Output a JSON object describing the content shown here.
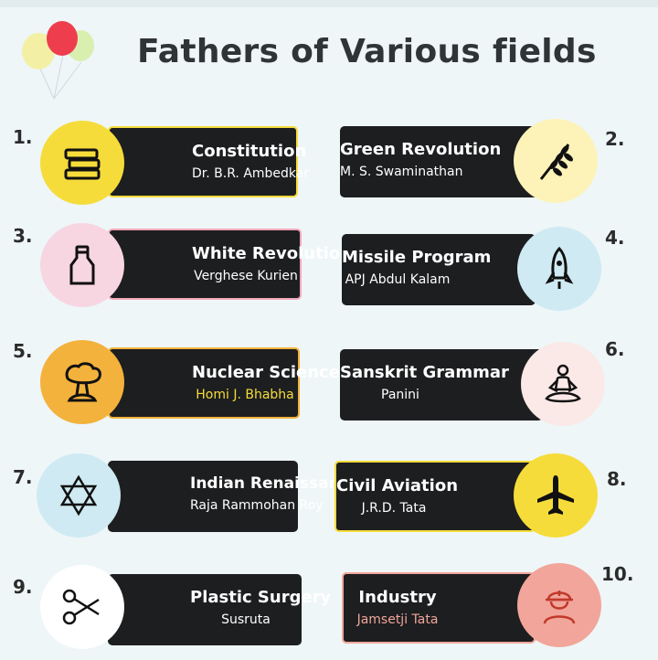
{
  "title": "Fathers of Various fields",
  "colors": {
    "card": "#1d1e20",
    "yellow": "#f6dc3a",
    "pink": "#f7d6e2",
    "light_blue": "#cfeaf2",
    "orange": "#f3b23c",
    "pale_yellow": "#fdf3b8",
    "salmon": "#f2a59a"
  },
  "items": [
    {
      "number": "1.",
      "field": "Constitution",
      "person": "Dr. B.R. Ambedkar",
      "icon": "books-icon"
    },
    {
      "number": "2.",
      "field": "Green Revolution",
      "person": "M. S. Swaminathan",
      "icon": "wheat-icon"
    },
    {
      "number": "3.",
      "field": "White Revolution",
      "person": "Verghese Kurien",
      "icon": "milk-bottle-icon"
    },
    {
      "number": "4.",
      "field": "Missile Program",
      "person": "APJ Abdul Kalam",
      "icon": "rocket-icon"
    },
    {
      "number": "5.",
      "field": "Nuclear Science",
      "person": "Homi J. Bhabha",
      "icon": "mushroom-cloud-icon"
    },
    {
      "number": "6.",
      "field": "Sanskrit Grammar",
      "person": "Panini",
      "icon": "meditation-icon"
    },
    {
      "number": "7.",
      "field": "Indian Renaissance",
      "person": "Raja Rammohan Roy",
      "icon": "star-of-david-icon"
    },
    {
      "number": "8.",
      "field": "Civil Aviation",
      "person": "J.R.D. Tata",
      "icon": "airplane-icon"
    },
    {
      "number": "9.",
      "field": "Plastic Surgery",
      "person": "Susruta",
      "icon": "scissors-icon"
    },
    {
      "number": "10.",
      "field": "Industry",
      "person": "Jamsetji Tata",
      "icon": "worker-icon"
    }
  ]
}
